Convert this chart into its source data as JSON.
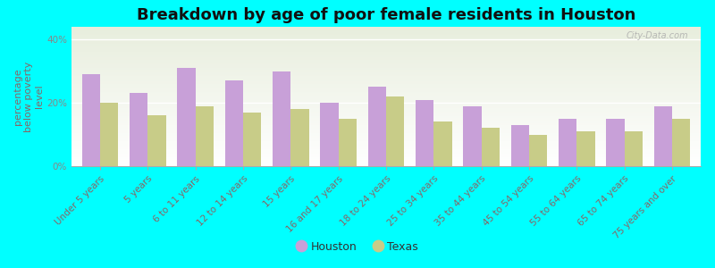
{
  "title": "Breakdown by age of poor female residents in Houston",
  "ylabel": "percentage\nbelow poverty\nlevel",
  "background_color": "#00FFFF",
  "categories": [
    "Under 5 years",
    "5 years",
    "6 to 11 years",
    "12 to 14 years",
    "15 years",
    "16 and 17 years",
    "18 to 24 years",
    "25 to 34 years",
    "35 to 44 years",
    "45 to 54 years",
    "55 to 64 years",
    "65 to 74 years",
    "75 years and over"
  ],
  "houston_values": [
    29,
    23,
    31,
    27,
    30,
    20,
    25,
    21,
    19,
    13,
    15,
    15,
    19
  ],
  "texas_values": [
    20,
    16,
    19,
    17,
    18,
    15,
    22,
    14,
    12,
    10,
    11,
    11,
    15
  ],
  "houston_color": "#c8a0d8",
  "texas_color": "#c8cc88",
  "yticks": [
    0,
    20,
    40
  ],
  "ytick_labels": [
    "0%",
    "20%",
    "40%"
  ],
  "ylim": [
    0,
    44
  ],
  "bar_width": 0.38,
  "title_fontsize": 13,
  "axis_label_fontsize": 8,
  "tick_fontsize": 7.5,
  "legend_fontsize": 9,
  "watermark": "City-Data.com"
}
